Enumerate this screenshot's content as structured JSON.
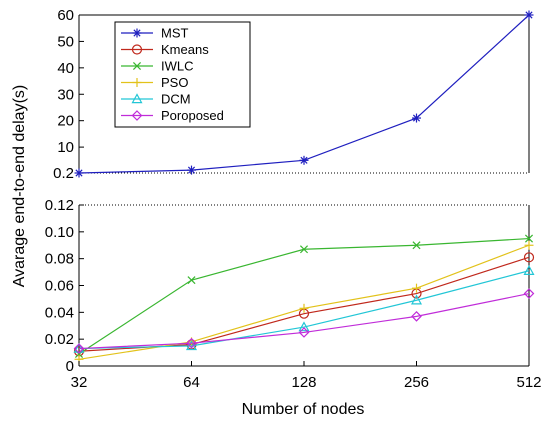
{
  "chart_data": {
    "type": "line",
    "xlabel": "Number of nodes",
    "ylabel": "Avarage end-to-end delay(s)",
    "categories": [
      "32",
      "64",
      "128",
      "256",
      "512"
    ],
    "upper_axis": {
      "ylim": [
        0.2,
        60
      ],
      "ticks": [
        "0.2",
        "10",
        "20",
        "30",
        "40",
        "50",
        "60"
      ],
      "tick_values": [
        0.2,
        10,
        20,
        30,
        40,
        50,
        60
      ]
    },
    "lower_axis": {
      "ylim": [
        0,
        0.12
      ],
      "ticks": [
        "0",
        "0.02",
        "0.04",
        "0.06",
        "0.08",
        "0.10",
        "0.12"
      ],
      "tick_values": [
        0,
        0.02,
        0.04,
        0.06,
        0.08,
        0.1,
        0.12
      ]
    },
    "legend_position": "top-left",
    "series": [
      {
        "name": "MST",
        "panel": "upper",
        "color": "#1f1fbf",
        "marker": "star",
        "values": [
          0.2,
          1.3,
          5,
          21,
          60
        ]
      },
      {
        "name": "Kmeans",
        "panel": "lower",
        "color": "#c0281c",
        "marker": "circle",
        "values": [
          0.011,
          0.016,
          0.039,
          0.054,
          0.081
        ]
      },
      {
        "name": "IWLC",
        "panel": "lower",
        "color": "#39b630",
        "marker": "x",
        "values": [
          0.009,
          0.064,
          0.087,
          0.09,
          0.095
        ]
      },
      {
        "name": "PSO",
        "panel": "lower",
        "color": "#e2c21a",
        "marker": "plus",
        "values": [
          0.005,
          0.018,
          0.043,
          0.058,
          0.09
        ]
      },
      {
        "name": "DCM",
        "panel": "lower",
        "color": "#22c6d6",
        "marker": "triangle",
        "values": [
          0.013,
          0.015,
          0.029,
          0.049,
          0.071
        ]
      },
      {
        "name": "Poroposed",
        "panel": "lower",
        "color": "#c02cd9",
        "marker": "diamond",
        "values": [
          0.013,
          0.017,
          0.025,
          0.037,
          0.054
        ]
      }
    ]
  }
}
